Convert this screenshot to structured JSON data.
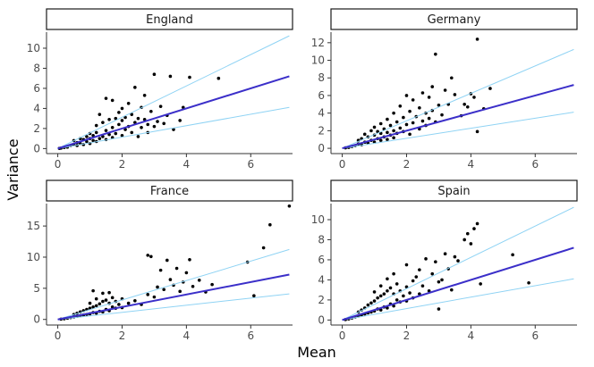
{
  "chart_data": {
    "type": "scatter",
    "xlabel": "Mean",
    "ylabel": "Variance",
    "colors": {
      "points": "#000000",
      "fit_line": "#3b2fc9",
      "bound_lines": "#8fd3f4",
      "axis": "#333333"
    },
    "reference_lines": {
      "fit_slope": 1.0,
      "upper_slope": 1.56,
      "lower_slope": 0.57
    },
    "panels": [
      {
        "title": "England",
        "xlim": [
          -0.35,
          7.3
        ],
        "ylim": [
          -0.5,
          11.6
        ],
        "xticks": [
          "0",
          "2",
          "4",
          "6"
        ],
        "xtick_values": [
          0,
          2,
          4,
          6
        ],
        "yticks": [
          "0",
          "2",
          "4",
          "6",
          "8",
          "10"
        ],
        "ytick_values": [
          0,
          2,
          4,
          6,
          8,
          10
        ],
        "points": [
          [
            0.05,
            0.02
          ],
          [
            0.1,
            0.05
          ],
          [
            0.2,
            0.1
          ],
          [
            0.3,
            0.15
          ],
          [
            0.4,
            0.3
          ],
          [
            0.5,
            0.4
          ],
          [
            0.5,
            0.8
          ],
          [
            0.6,
            0.3
          ],
          [
            0.6,
            0.6
          ],
          [
            0.7,
            0.5
          ],
          [
            0.7,
            1.0
          ],
          [
            0.8,
            0.4
          ],
          [
            0.8,
            0.9
          ],
          [
            0.9,
            0.7
          ],
          [
            0.9,
            1.2
          ],
          [
            1.0,
            0.5
          ],
          [
            1.0,
            1.0
          ],
          [
            1.0,
            1.5
          ],
          [
            1.1,
            0.8
          ],
          [
            1.1,
            1.3
          ],
          [
            1.2,
            0.7
          ],
          [
            1.2,
            1.6
          ],
          [
            1.2,
            2.3
          ],
          [
            1.3,
            1.0
          ],
          [
            1.3,
            3.4
          ],
          [
            1.4,
            1.2
          ],
          [
            1.4,
            2.6
          ],
          [
            1.5,
            0.9
          ],
          [
            1.5,
            1.8
          ],
          [
            1.5,
            5.0
          ],
          [
            1.6,
            1.4
          ],
          [
            1.6,
            2.9
          ],
          [
            1.7,
            1.1
          ],
          [
            1.7,
            2.1
          ],
          [
            1.7,
            4.8
          ],
          [
            1.8,
            1.5
          ],
          [
            1.8,
            3.0
          ],
          [
            1.9,
            2.4
          ],
          [
            1.9,
            3.6
          ],
          [
            2.0,
            1.3
          ],
          [
            2.0,
            2.8
          ],
          [
            2.0,
            4.0
          ],
          [
            2.1,
            1.9
          ],
          [
            2.1,
            3.1
          ],
          [
            2.2,
            2.2
          ],
          [
            2.2,
            4.5
          ],
          [
            2.3,
            1.6
          ],
          [
            2.3,
            3.4
          ],
          [
            2.4,
            2.6
          ],
          [
            2.4,
            6.1
          ],
          [
            2.5,
            1.2
          ],
          [
            2.5,
            3.0
          ],
          [
            2.6,
            2.1
          ],
          [
            2.6,
            4.1
          ],
          [
            2.7,
            2.9
          ],
          [
            2.7,
            5.3
          ],
          [
            2.8,
            1.6
          ],
          [
            2.8,
            2.4
          ],
          [
            2.9,
            3.7
          ],
          [
            3.0,
            2.2
          ],
          [
            3.0,
            7.4
          ],
          [
            3.1,
            2.7
          ],
          [
            3.2,
            4.2
          ],
          [
            3.3,
            2.5
          ],
          [
            3.4,
            3.3
          ],
          [
            3.5,
            7.2
          ],
          [
            3.6,
            1.9
          ],
          [
            3.8,
            2.8
          ],
          [
            3.9,
            4.1
          ],
          [
            4.1,
            7.1
          ],
          [
            5.0,
            7.0
          ]
        ]
      },
      {
        "title": "Germany",
        "xlim": [
          -0.35,
          7.3
        ],
        "ylim": [
          -0.6,
          13.2
        ],
        "xticks": [
          "0",
          "2",
          "4",
          "6"
        ],
        "xtick_values": [
          0,
          2,
          4,
          6
        ],
        "yticks": [
          "0",
          "2",
          "4",
          "6",
          "8",
          "10",
          "12"
        ],
        "ytick_values": [
          0,
          2,
          4,
          6,
          8,
          10,
          12
        ],
        "points": [
          [
            0.1,
            0.05
          ],
          [
            0.2,
            0.1
          ],
          [
            0.3,
            0.2
          ],
          [
            0.4,
            0.3
          ],
          [
            0.5,
            0.5
          ],
          [
            0.5,
            0.9
          ],
          [
            0.6,
            0.4
          ],
          [
            0.6,
            1.1
          ],
          [
            0.7,
            0.7
          ],
          [
            0.7,
            1.6
          ],
          [
            0.8,
            0.6
          ],
          [
            0.8,
            1.3
          ],
          [
            0.9,
            0.9
          ],
          [
            0.9,
            2.0
          ],
          [
            1.0,
            0.7
          ],
          [
            1.0,
            1.5
          ],
          [
            1.0,
            2.4
          ],
          [
            1.1,
            1.1
          ],
          [
            1.1,
            1.9
          ],
          [
            1.2,
            0.9
          ],
          [
            1.2,
            1.7
          ],
          [
            1.2,
            2.8
          ],
          [
            1.3,
            1.3
          ],
          [
            1.3,
            2.2
          ],
          [
            1.4,
            1.0
          ],
          [
            1.4,
            1.8
          ],
          [
            1.4,
            3.3
          ],
          [
            1.5,
            1.5
          ],
          [
            1.5,
            2.6
          ],
          [
            1.6,
            1.2
          ],
          [
            1.6,
            2.0
          ],
          [
            1.6,
            4.0
          ],
          [
            1.7,
            1.7
          ],
          [
            1.7,
            3.0
          ],
          [
            1.8,
            2.3
          ],
          [
            1.8,
            4.8
          ],
          [
            1.9,
            1.9
          ],
          [
            1.9,
            3.5
          ],
          [
            2.0,
            2.7
          ],
          [
            2.0,
            6.0
          ],
          [
            2.1,
            1.6
          ],
          [
            2.1,
            4.2
          ],
          [
            2.2,
            2.9
          ],
          [
            2.2,
            5.5
          ],
          [
            2.3,
            3.6
          ],
          [
            2.4,
            2.2
          ],
          [
            2.4,
            4.6
          ],
          [
            2.5,
            3.1
          ],
          [
            2.5,
            6.3
          ],
          [
            2.6,
            2.6
          ],
          [
            2.6,
            4.0
          ],
          [
            2.7,
            3.4
          ],
          [
            2.7,
            5.8
          ],
          [
            2.8,
            4.3
          ],
          [
            2.8,
            7.0
          ],
          [
            2.9,
            3.0
          ],
          [
            2.9,
            10.7
          ],
          [
            3.0,
            4.9
          ],
          [
            3.1,
            3.8
          ],
          [
            3.2,
            6.6
          ],
          [
            3.3,
            5.0
          ],
          [
            3.4,
            8.0
          ],
          [
            3.5,
            6.1
          ],
          [
            3.7,
            3.7
          ],
          [
            3.8,
            5.0
          ],
          [
            3.9,
            4.7
          ],
          [
            4.0,
            6.2
          ],
          [
            4.1,
            5.8
          ],
          [
            4.2,
            12.4
          ],
          [
            4.2,
            1.9
          ],
          [
            4.4,
            4.5
          ],
          [
            4.6,
            6.8
          ]
        ]
      },
      {
        "title": "France",
        "xlim": [
          -0.35,
          7.3
        ],
        "ylim": [
          -0.9,
          18.6
        ],
        "xticks": [
          "0",
          "2",
          "4",
          "6"
        ],
        "xtick_values": [
          0,
          2,
          4,
          6
        ],
        "yticks": [
          "0",
          "5",
          "10",
          "15"
        ],
        "ytick_values": [
          0,
          5,
          10,
          15
        ],
        "points": [
          [
            0.1,
            0.05
          ],
          [
            0.2,
            0.1
          ],
          [
            0.3,
            0.2
          ],
          [
            0.4,
            0.3
          ],
          [
            0.5,
            0.4
          ],
          [
            0.5,
            0.8
          ],
          [
            0.6,
            0.5
          ],
          [
            0.6,
            1.0
          ],
          [
            0.7,
            0.6
          ],
          [
            0.7,
            1.2
          ],
          [
            0.8,
            0.7
          ],
          [
            0.8,
            1.4
          ],
          [
            0.9,
            0.8
          ],
          [
            0.9,
            1.6
          ],
          [
            1.0,
            0.9
          ],
          [
            1.0,
            1.8
          ],
          [
            1.0,
            2.6
          ],
          [
            1.1,
            1.1
          ],
          [
            1.1,
            2.0
          ],
          [
            1.1,
            4.6
          ],
          [
            1.2,
            1.0
          ],
          [
            1.2,
            2.2
          ],
          [
            1.2,
            3.3
          ],
          [
            1.3,
            1.3
          ],
          [
            1.3,
            2.5
          ],
          [
            1.4,
            1.2
          ],
          [
            1.4,
            2.9
          ],
          [
            1.4,
            4.2
          ],
          [
            1.5,
            1.6
          ],
          [
            1.5,
            3.1
          ],
          [
            1.6,
            1.4
          ],
          [
            1.6,
            2.6
          ],
          [
            1.6,
            4.3
          ],
          [
            1.7,
            2.0
          ],
          [
            1.7,
            3.5
          ],
          [
            1.8,
            1.8
          ],
          [
            1.8,
            2.9
          ],
          [
            1.9,
            2.4
          ],
          [
            2.0,
            1.9
          ],
          [
            2.0,
            3.3
          ],
          [
            2.2,
            2.6
          ],
          [
            2.4,
            3.0
          ],
          [
            2.6,
            2.4
          ],
          [
            2.8,
            10.3
          ],
          [
            2.8,
            4.0
          ],
          [
            2.9,
            10.1
          ],
          [
            3.0,
            3.6
          ],
          [
            3.1,
            5.2
          ],
          [
            3.2,
            7.9
          ],
          [
            3.3,
            4.8
          ],
          [
            3.4,
            9.5
          ],
          [
            3.5,
            6.4
          ],
          [
            3.6,
            5.5
          ],
          [
            3.7,
            8.2
          ],
          [
            3.8,
            4.5
          ],
          [
            3.9,
            6.0
          ],
          [
            4.0,
            7.5
          ],
          [
            4.1,
            9.6
          ],
          [
            4.2,
            5.3
          ],
          [
            4.4,
            6.3
          ],
          [
            4.6,
            4.4
          ],
          [
            4.8,
            5.6
          ],
          [
            5.9,
            9.2
          ],
          [
            6.1,
            3.8
          ],
          [
            6.4,
            11.5
          ],
          [
            6.6,
            15.2
          ],
          [
            7.2,
            18.2
          ]
        ]
      },
      {
        "title": "Spain",
        "xlim": [
          -0.35,
          7.3
        ],
        "ylim": [
          -0.5,
          11.6
        ],
        "xticks": [
          "0",
          "2",
          "4",
          "6"
        ],
        "xtick_values": [
          0,
          2,
          4,
          6
        ],
        "yticks": [
          "0",
          "2",
          "4",
          "6",
          "8",
          "10"
        ],
        "ytick_values": [
          0,
          2,
          4,
          6,
          8,
          10
        ],
        "points": [
          [
            0.1,
            0.05
          ],
          [
            0.2,
            0.1
          ],
          [
            0.3,
            0.2
          ],
          [
            0.4,
            0.3
          ],
          [
            0.5,
            0.4
          ],
          [
            0.5,
            0.8
          ],
          [
            0.6,
            0.5
          ],
          [
            0.6,
            1.0
          ],
          [
            0.7,
            0.6
          ],
          [
            0.7,
            1.2
          ],
          [
            0.8,
            0.7
          ],
          [
            0.8,
            1.5
          ],
          [
            0.9,
            0.8
          ],
          [
            0.9,
            1.7
          ],
          [
            1.0,
            0.9
          ],
          [
            1.0,
            1.9
          ],
          [
            1.0,
            2.8
          ],
          [
            1.1,
            1.1
          ],
          [
            1.1,
            2.2
          ],
          [
            1.2,
            1.0
          ],
          [
            1.2,
            2.4
          ],
          [
            1.2,
            3.4
          ],
          [
            1.3,
            1.3
          ],
          [
            1.3,
            2.6
          ],
          [
            1.4,
            1.2
          ],
          [
            1.4,
            2.9
          ],
          [
            1.4,
            4.1
          ],
          [
            1.5,
            1.6
          ],
          [
            1.5,
            3.2
          ],
          [
            1.6,
            1.4
          ],
          [
            1.6,
            2.6
          ],
          [
            1.6,
            4.6
          ],
          [
            1.7,
            2.0
          ],
          [
            1.7,
            3.6
          ],
          [
            1.8,
            1.8
          ],
          [
            1.8,
            2.9
          ],
          [
            1.9,
            2.4
          ],
          [
            2.0,
            1.9
          ],
          [
            2.0,
            3.3
          ],
          [
            2.0,
            5.5
          ],
          [
            2.1,
            2.7
          ],
          [
            2.2,
            3.9
          ],
          [
            2.2,
            2.2
          ],
          [
            2.3,
            4.3
          ],
          [
            2.4,
            2.6
          ],
          [
            2.4,
            5.0
          ],
          [
            2.5,
            3.4
          ],
          [
            2.6,
            6.1
          ],
          [
            2.7,
            2.9
          ],
          [
            2.8,
            4.6
          ],
          [
            2.9,
            5.8
          ],
          [
            3.0,
            1.1
          ],
          [
            3.0,
            3.8
          ],
          [
            3.1,
            4.0
          ],
          [
            3.2,
            6.6
          ],
          [
            3.3,
            5.1
          ],
          [
            3.4,
            3.0
          ],
          [
            3.5,
            6.3
          ],
          [
            3.6,
            5.9
          ],
          [
            3.8,
            8.0
          ],
          [
            3.9,
            8.6
          ],
          [
            4.0,
            7.6
          ],
          [
            4.1,
            9.1
          ],
          [
            4.2,
            9.6
          ],
          [
            4.3,
            3.6
          ],
          [
            5.3,
            6.5
          ],
          [
            5.8,
            3.7
          ]
        ]
      }
    ]
  }
}
